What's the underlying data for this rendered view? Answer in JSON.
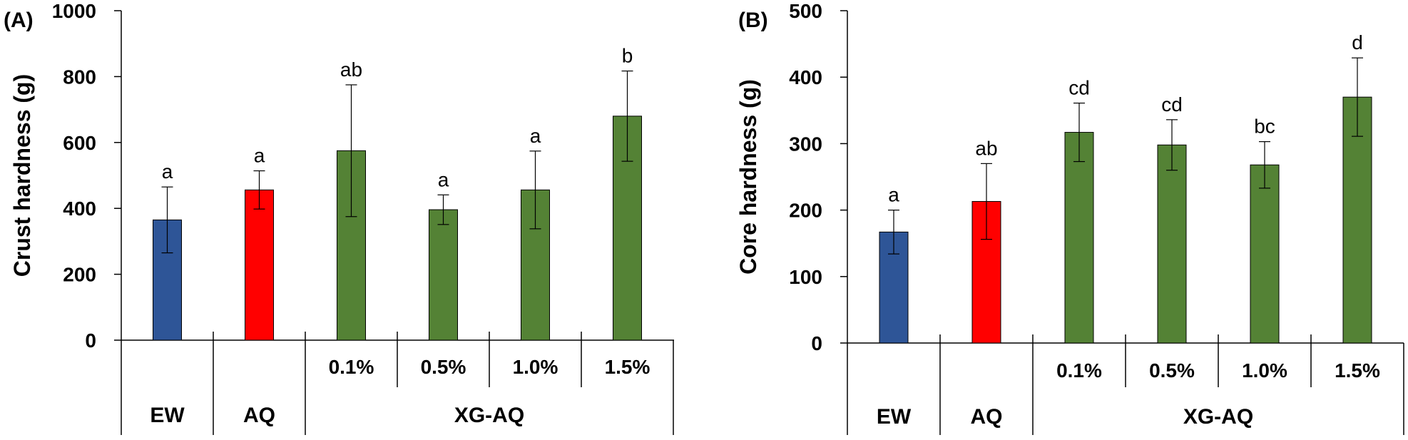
{
  "chart_data": [
    {
      "type": "bar",
      "panel_label": "(A)",
      "ylabel": "Crust hardness (g)",
      "ylim": [
        0,
        1000
      ],
      "yticks": [
        "0",
        "200",
        "400",
        "600",
        "800",
        "1000"
      ],
      "ytick_values": [
        0,
        200,
        400,
        600,
        800,
        1000
      ],
      "groups": [
        {
          "label": "EW",
          "subcategories": [
            ""
          ]
        },
        {
          "label": "AQ",
          "subcategories": [
            ""
          ]
        },
        {
          "label": "XG-AQ",
          "subcategories": [
            "0.1%",
            "0.5%",
            "1.0%",
            "1.5%"
          ]
        }
      ],
      "bars": [
        {
          "name": "EW",
          "value": 365,
          "error": 100,
          "letter": "a",
          "color": "#2E5597"
        },
        {
          "name": "AQ",
          "value": 456,
          "error": 58,
          "letter": "a",
          "color": "#FF0000"
        },
        {
          "name": "XG-AQ 0.1%",
          "value": 575,
          "error": 200,
          "letter": "ab",
          "color": "#548235"
        },
        {
          "name": "XG-AQ 0.5%",
          "value": 396,
          "error": 45,
          "letter": "a",
          "color": "#548235"
        },
        {
          "name": "XG-AQ 1.0%",
          "value": 456,
          "error": 118,
          "letter": "a",
          "color": "#548235"
        },
        {
          "name": "XG-AQ 1.5%",
          "value": 680,
          "error": 137,
          "letter": "b",
          "color": "#548235"
        }
      ]
    },
    {
      "type": "bar",
      "panel_label": "(B)",
      "ylabel": "Core hardness (g)",
      "ylim": [
        0,
        500
      ],
      "yticks": [
        "0",
        "100",
        "200",
        "300",
        "400",
        "500"
      ],
      "ytick_values": [
        0,
        100,
        200,
        300,
        400,
        500
      ],
      "groups": [
        {
          "label": "EW",
          "subcategories": [
            ""
          ]
        },
        {
          "label": "AQ",
          "subcategories": [
            ""
          ]
        },
        {
          "label": "XG-AQ",
          "subcategories": [
            "0.1%",
            "0.5%",
            "1.0%",
            "1.5%"
          ]
        }
      ],
      "bars": [
        {
          "name": "EW",
          "value": 167,
          "error": 33,
          "letter": "a",
          "color": "#2E5597"
        },
        {
          "name": "AQ",
          "value": 213,
          "error": 57,
          "letter": "ab",
          "color": "#FF0000"
        },
        {
          "name": "XG-AQ 0.1%",
          "value": 317,
          "error": 44,
          "letter": "cd",
          "color": "#548235"
        },
        {
          "name": "XG-AQ 0.5%",
          "value": 298,
          "error": 38,
          "letter": "cd",
          "color": "#548235"
        },
        {
          "name": "XG-AQ 1.0%",
          "value": 268,
          "error": 35,
          "letter": "bc",
          "color": "#548235"
        },
        {
          "name": "XG-AQ 1.5%",
          "value": 370,
          "error": 59,
          "letter": "d",
          "color": "#548235"
        }
      ]
    }
  ]
}
